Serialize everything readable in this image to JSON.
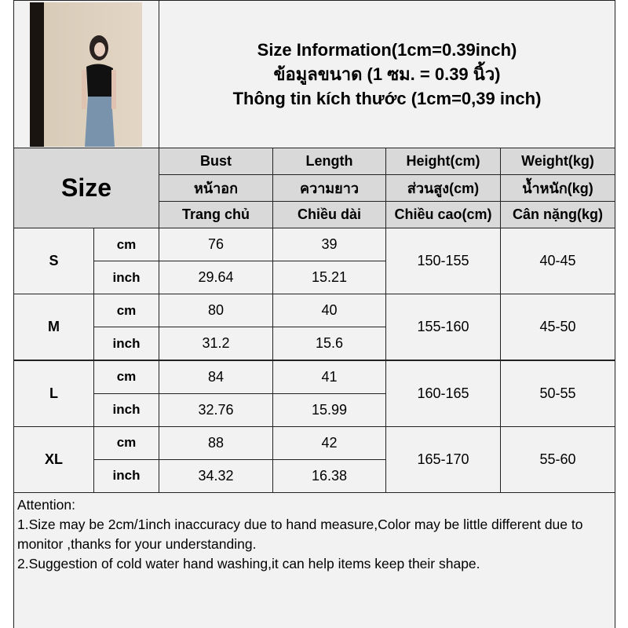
{
  "title": [
    "Size Information(1cm=0.39inch)",
    "ข้อมูลขนาด (1 ซม. = 0.39 นิ้ว)",
    "Thông tin kích thước (1cm=0,39 inch)"
  ],
  "size_header": "Size",
  "columns": [
    [
      "Bust",
      "หน้าอก",
      "Trang chủ"
    ],
    [
      "Length",
      "ความยาว",
      "Chiều dài"
    ],
    [
      "Height(cm)",
      "ส่วนสูง(cm)",
      "Chiều cao(cm)"
    ],
    [
      "Weight(kg)",
      "น้ำหนัก(kg)",
      "Cân nặng(kg)"
    ]
  ],
  "rows": [
    {
      "size": "S",
      "cm_label": "cm",
      "inch_label": "inch",
      "bust_cm": "76",
      "length_cm": "39",
      "bust_in": "29.64",
      "length_in": "15.21",
      "height": "150-155",
      "weight": "40-45"
    },
    {
      "size": "M",
      "cm_label": "cm",
      "inch_label": "inch",
      "bust_cm": "80",
      "length_cm": "40",
      "bust_in": "31.2",
      "length_in": "15.6",
      "height": "155-160",
      "weight": "45-50"
    },
    {
      "size": "L",
      "cm_label": "cm",
      "inch_label": "inch",
      "bust_cm": "84",
      "length_cm": "41",
      "bust_in": "32.76",
      "length_in": "15.99",
      "height": "160-165",
      "weight": "50-55"
    },
    {
      "size": "XL",
      "cm_label": "cm",
      "inch_label": "inch",
      "bust_cm": "88",
      "length_cm": "42",
      "bust_in": "34.32",
      "length_in": "16.38",
      "height": "165-170",
      "weight": "55-60"
    }
  ],
  "attention": [
    "Attention:",
    "1.Size may be 2cm/1inch inaccuracy due to hand measure,Color may be little different due to monitor ,thanks for your understanding.",
    "2.Suggestion of cold water hand washing,it can help items keep their shape."
  ]
}
